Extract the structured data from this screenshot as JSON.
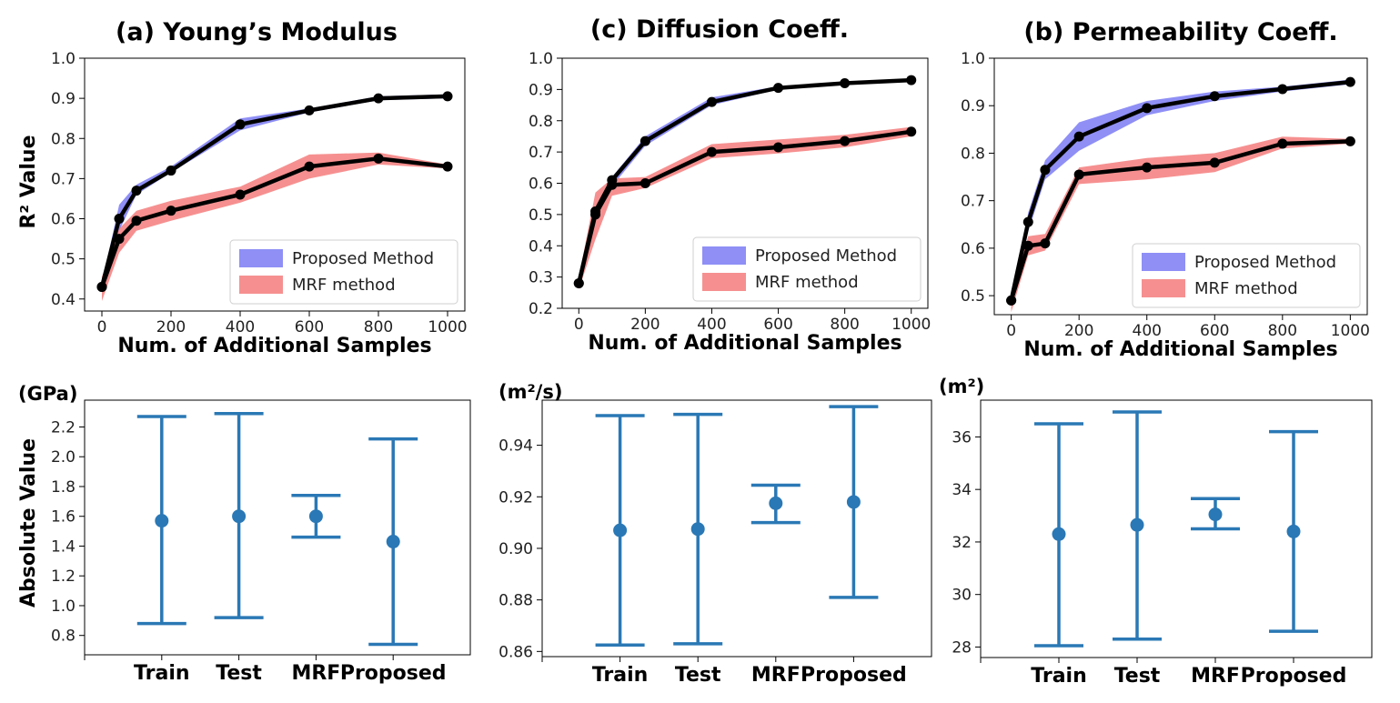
{
  "figure": {
    "ylabel_top": "R² Value",
    "ylabel_bottom": "Absolute Value"
  },
  "colors": {
    "proposed": "#7b7bf5",
    "mrf": "#f47c7c",
    "line": "#000000",
    "errorbar": "#2a78b5"
  },
  "chart_data": [
    {
      "type": "line",
      "title": "(a) Young’s Modulus",
      "xlabel": "Num. of Additional Samples",
      "ylabel": "R² Value",
      "xlim": [
        -50,
        1050
      ],
      "ylim": [
        0.37,
        1.0
      ],
      "xticks": [
        0,
        200,
        400,
        600,
        800,
        1000
      ],
      "yticks": [
        0.4,
        0.5,
        0.6,
        0.7,
        0.8,
        0.9,
        1.0
      ],
      "legend_position": "lower-right",
      "series": [
        {
          "name": "Proposed Method",
          "x": [
            0,
            50,
            100,
            200,
            400,
            600,
            800,
            1000
          ],
          "y": [
            0.43,
            0.6,
            0.67,
            0.72,
            0.835,
            0.87,
            0.9,
            0.905
          ],
          "lower": [
            0.42,
            0.57,
            0.66,
            0.715,
            0.82,
            0.865,
            0.895,
            0.9
          ],
          "upper": [
            0.44,
            0.635,
            0.685,
            0.73,
            0.85,
            0.875,
            0.905,
            0.91
          ]
        },
        {
          "name": "MRF method",
          "x": [
            0,
            50,
            100,
            200,
            400,
            600,
            800,
            1000
          ],
          "y": [
            0.43,
            0.55,
            0.595,
            0.62,
            0.66,
            0.73,
            0.75,
            0.73
          ],
          "lower": [
            0.395,
            0.515,
            0.57,
            0.595,
            0.64,
            0.7,
            0.735,
            0.725
          ],
          "upper": [
            0.455,
            0.575,
            0.62,
            0.645,
            0.68,
            0.76,
            0.765,
            0.735
          ]
        }
      ]
    },
    {
      "type": "line",
      "title": "(c) Diffusion Coeff.",
      "xlabel": "Num. of Additional Samples",
      "ylabel": "",
      "xlim": [
        -50,
        1050
      ],
      "ylim": [
        0.2,
        1.0
      ],
      "xticks": [
        0,
        200,
        400,
        600,
        800,
        1000
      ],
      "yticks": [
        0.2,
        0.3,
        0.4,
        0.5,
        0.6,
        0.7,
        0.8,
        0.9,
        1.0
      ],
      "legend_position": "lower-right",
      "series": [
        {
          "name": "Proposed Method",
          "x": [
            0,
            50,
            100,
            200,
            400,
            600,
            800,
            1000
          ],
          "y": [
            0.28,
            0.51,
            0.61,
            0.735,
            0.86,
            0.905,
            0.92,
            0.93
          ],
          "lower": [
            0.27,
            0.5,
            0.59,
            0.72,
            0.85,
            0.9,
            0.92,
            0.925
          ],
          "upper": [
            0.29,
            0.52,
            0.62,
            0.75,
            0.875,
            0.91,
            0.925,
            0.935
          ]
        },
        {
          "name": "MRF method",
          "x": [
            0,
            50,
            100,
            200,
            400,
            600,
            800,
            1000
          ],
          "y": [
            0.28,
            0.5,
            0.595,
            0.6,
            0.7,
            0.715,
            0.735,
            0.765
          ],
          "lower": [
            0.26,
            0.42,
            0.56,
            0.585,
            0.68,
            0.695,
            0.715,
            0.75
          ],
          "upper": [
            0.3,
            0.57,
            0.615,
            0.62,
            0.725,
            0.74,
            0.755,
            0.78
          ]
        }
      ]
    },
    {
      "type": "line",
      "title": "(b) Permeability Coeff.",
      "xlabel": "Num. of Additional Samples",
      "ylabel": "",
      "xlim": [
        -50,
        1050
      ],
      "ylim": [
        0.46,
        1.0
      ],
      "xticks": [
        0,
        200,
        400,
        600,
        800,
        1000
      ],
      "yticks": [
        0.5,
        0.6,
        0.7,
        0.8,
        0.9,
        1.0
      ],
      "legend_position": "lower-right",
      "series": [
        {
          "name": "Proposed Method",
          "x": [
            0,
            50,
            100,
            200,
            400,
            600,
            800,
            1000
          ],
          "y": [
            0.49,
            0.655,
            0.765,
            0.835,
            0.895,
            0.92,
            0.935,
            0.95
          ],
          "lower": [
            0.48,
            0.635,
            0.745,
            0.805,
            0.88,
            0.91,
            0.93,
            0.945
          ],
          "upper": [
            0.5,
            0.675,
            0.785,
            0.865,
            0.91,
            0.93,
            0.94,
            0.955
          ]
        },
        {
          "name": "MRF method",
          "x": [
            0,
            50,
            100,
            200,
            400,
            600,
            800,
            1000
          ],
          "y": [
            0.49,
            0.605,
            0.61,
            0.755,
            0.77,
            0.78,
            0.82,
            0.825
          ],
          "lower": [
            0.465,
            0.585,
            0.595,
            0.735,
            0.745,
            0.76,
            0.81,
            0.82
          ],
          "upper": [
            0.505,
            0.625,
            0.63,
            0.77,
            0.79,
            0.8,
            0.835,
            0.83
          ]
        }
      ]
    },
    {
      "type": "errorbar",
      "unit": "(GPa)",
      "ylabel": "Absolute Value",
      "categories": [
        "Train",
        "Test",
        "MRF",
        "Proposed"
      ],
      "ylim": [
        0.67,
        2.38
      ],
      "yticks": [
        0.8,
        1.0,
        1.2,
        1.4,
        1.6,
        1.8,
        2.0,
        2.2
      ],
      "means": [
        1.57,
        1.6,
        1.6,
        1.43
      ],
      "lower": [
        0.88,
        0.92,
        1.46,
        0.74
      ],
      "upper": [
        2.27,
        2.29,
        1.74,
        2.12
      ]
    },
    {
      "type": "errorbar",
      "unit": "(m²/s)",
      "ylabel": "",
      "categories": [
        "Train",
        "Test",
        "MRF",
        "Proposed"
      ],
      "ylim": [
        0.858,
        0.9575
      ],
      "yticks": [
        0.86,
        0.88,
        0.9,
        0.92,
        0.94
      ],
      "means": [
        0.907,
        0.9075,
        0.9175,
        0.918
      ],
      "lower": [
        0.8625,
        0.863,
        0.91,
        0.881
      ],
      "upper": [
        0.9515,
        0.952,
        0.9245,
        0.955
      ]
    },
    {
      "type": "errorbar",
      "unit": "(m²)",
      "ylabel": "",
      "categories": [
        "Train",
        "Test",
        "MRF",
        "Proposed"
      ],
      "ylim": [
        27.6,
        37.4
      ],
      "yticks": [
        28,
        30,
        32,
        34,
        36
      ],
      "means": [
        32.3,
        32.65,
        33.05,
        32.4
      ],
      "lower": [
        28.05,
        28.3,
        32.5,
        28.6
      ],
      "upper": [
        36.5,
        36.95,
        33.65,
        36.2
      ]
    }
  ]
}
